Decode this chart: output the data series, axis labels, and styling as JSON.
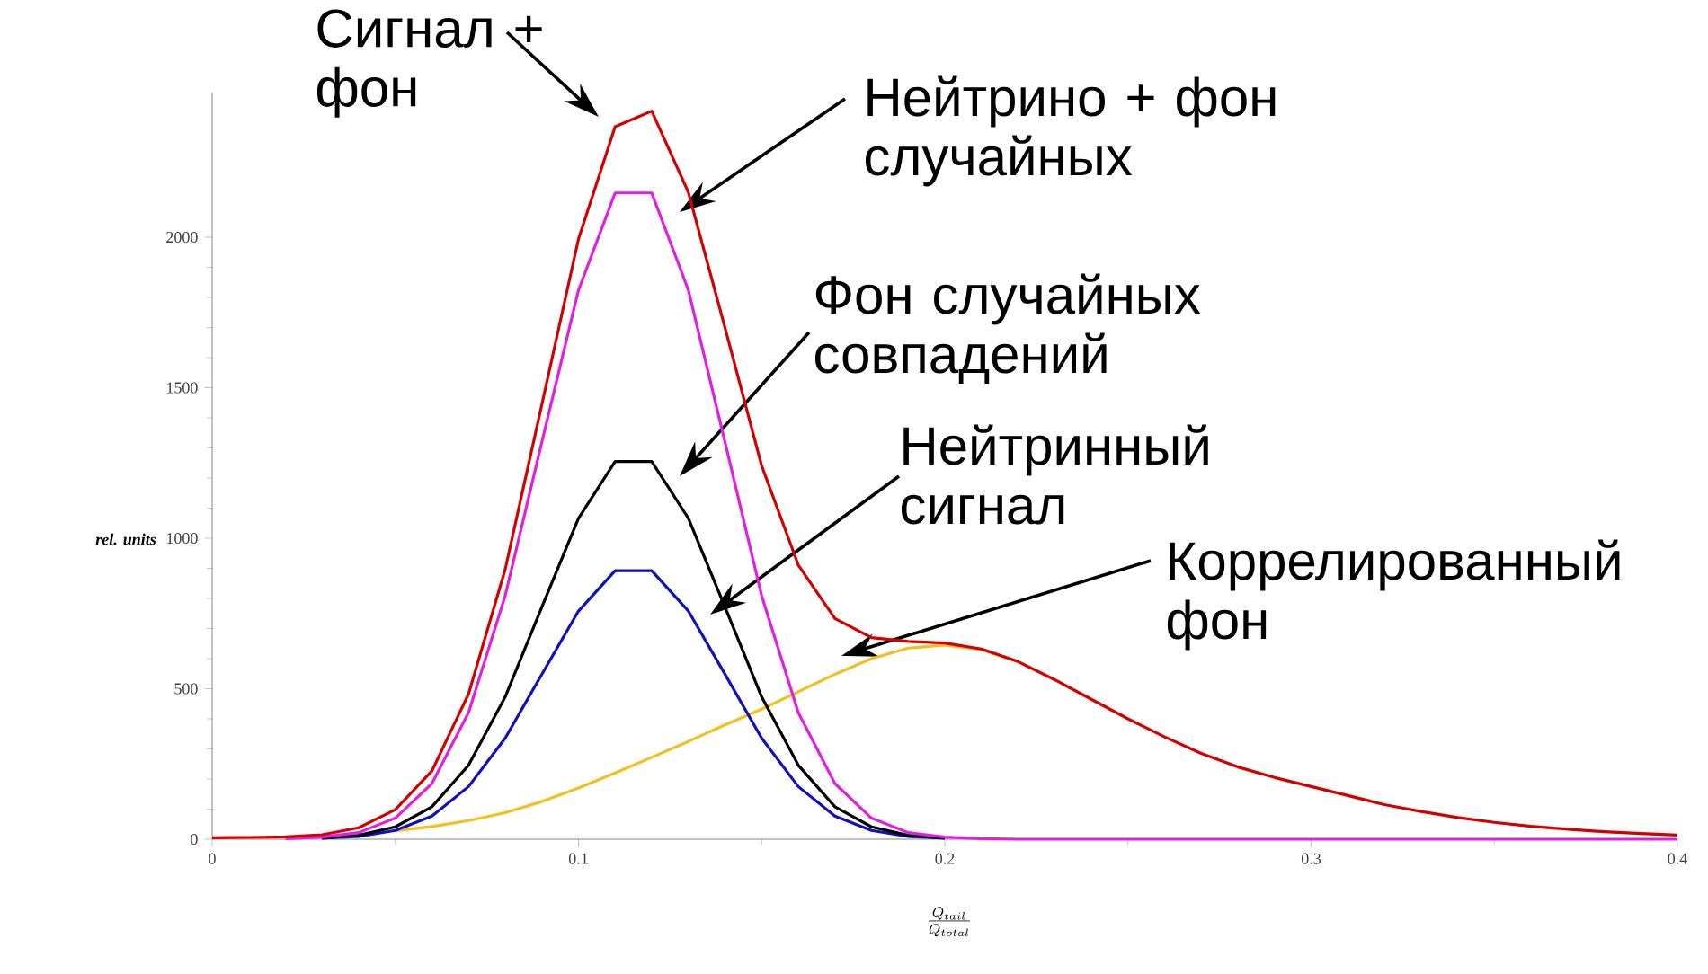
{
  "chart_data": {
    "type": "line",
    "xlabel": "\\frac{Q_{tail}}{Q_{total}}",
    "ylabel": "rel. units",
    "x": [
      0,
      0.01,
      0.02,
      0.03,
      0.04,
      0.05,
      0.06,
      0.07,
      0.08,
      0.09,
      0.1,
      0.11,
      0.12,
      0.13,
      0.14,
      0.15,
      0.16,
      0.17,
      0.18,
      0.19,
      0.2,
      0.21,
      0.22,
      0.23,
      0.24,
      0.25,
      0.26,
      0.27,
      0.28,
      0.29,
      0.3,
      0.31,
      0.32,
      0.33,
      0.34,
      0.35,
      0.36,
      0.37,
      0.38,
      0.39,
      0.4
    ],
    "series": [
      {
        "color": "#f0c020",
        "values": [
          null,
          null,
          null,
          null,
          null,
          28,
          42,
          62,
          88,
          125,
          170,
          220,
          272,
          325,
          380,
          432,
          490,
          548,
          600,
          635,
          645,
          630,
          590,
          null,
          null,
          null,
          null,
          null,
          null,
          null,
          null,
          null,
          null,
          null,
          null,
          null,
          null,
          null,
          null,
          null,
          null
        ]
      },
      {
        "color": "#1010c0",
        "values": [
          null,
          null,
          null,
          3,
          9,
          29,
          77,
          175,
          336,
          548,
          758,
          892,
          892,
          758,
          548,
          336,
          175,
          77,
          29,
          9,
          3,
          null,
          null,
          null,
          null,
          null,
          null,
          null,
          null,
          null,
          null,
          null,
          null,
          null,
          null,
          null,
          null,
          null,
          null,
          null,
          null
        ]
      },
      {
        "color": "#000000",
        "values": [
          null,
          null,
          null,
          4,
          13,
          41,
          108,
          246,
          473,
          771,
          1066,
          1255,
          1255,
          1066,
          771,
          473,
          246,
          108,
          41,
          13,
          4,
          null,
          null,
          null,
          null,
          null,
          null,
          null,
          null,
          null,
          null,
          null,
          null,
          null,
          null,
          null,
          null,
          null,
          null,
          null,
          null
        ]
      },
      {
        "color": "#e020e0",
        "values": [
          null,
          null,
          2,
          7,
          22,
          70,
          185,
          421,
          809,
          1319,
          1824,
          2147,
          2147,
          1824,
          1319,
          809,
          421,
          185,
          70,
          22,
          7,
          2,
          0,
          0,
          0,
          0,
          0,
          0,
          0,
          0,
          0,
          0,
          0,
          0,
          0,
          0,
          0,
          0,
          0,
          0,
          0
        ]
      },
      {
        "color": "#d40000",
        "values": [
          5,
          6,
          8,
          15,
          38,
          98,
          227,
          483,
          897,
          1444,
          1994,
          2367,
          2419,
          2149,
          1699,
          1241,
          911,
          733,
          670,
          657,
          652,
          632,
          590,
          530,
          465,
          400,
          340,
          285,
          240,
          205,
          175,
          145,
          115,
          92,
          72,
          56,
          43,
          33,
          25,
          19,
          14
        ]
      }
    ],
    "xlim": [
      0,
      0.4
    ],
    "ylim": [
      0,
      2480
    ],
    "xticks": [
      0,
      0.1,
      0.2,
      0.3,
      0.4
    ],
    "yticks": [
      0,
      500,
      1000,
      1500,
      2000
    ],
    "marker": "none",
    "grid": false,
    "annotations": [
      "Сигнал + фон",
      "Нейтрино + фон случайных",
      "Фон случайных совпадений",
      "Нейтринный сигнал",
      "Коррелированный фон"
    ]
  }
}
